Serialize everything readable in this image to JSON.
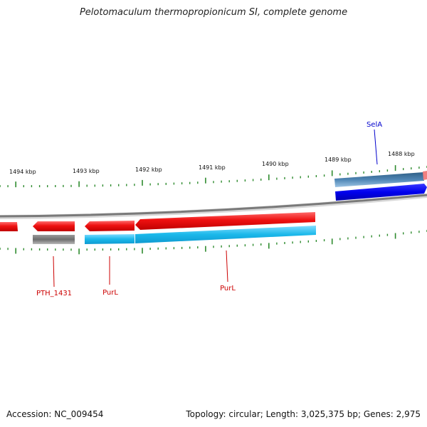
{
  "title": "Pelotomaculum thermopropionicum SI, complete genome",
  "footer": {
    "accession": "Accession: NC_009454",
    "topology": "Topology: circular; Length: 3,025,375 bp; Genes: 2,975"
  },
  "kbp_labels": [
    "1494 kbp",
    "1493 kbp",
    "1492 kbp",
    "1491 kbp",
    "1490 kbp",
    "1489 kbp",
    "1488 kbp"
  ],
  "gene_labels": {
    "sela": "SelA",
    "pth1431": "PTH_1431",
    "purl_a": "PurL",
    "purl_b": "PurL"
  },
  "colors": {
    "backbone": "#808080",
    "gene_red": "#ee1111",
    "gene_blue": "#0000ee",
    "gene_gray": "#707070",
    "cds_cyan": "#1bb8ea",
    "cds_steel": "#4f86b5",
    "tick_green": "#2e8b2e",
    "label_red": "#cc0000",
    "label_blue": "#0000cc"
  }
}
